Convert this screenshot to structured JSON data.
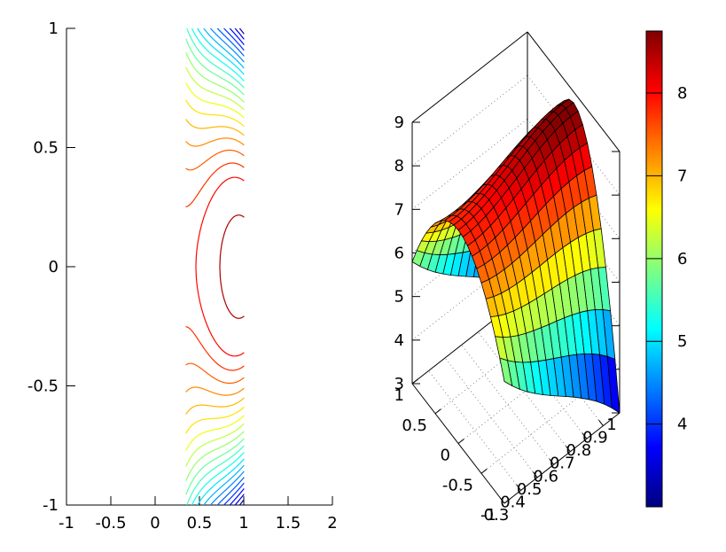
{
  "figure": {
    "background": "#ffffff",
    "text_color": "#000000"
  },
  "chart_data": [
    {
      "id": "contour-plot",
      "type": "contour",
      "title": "",
      "xlabel": "",
      "ylabel": "",
      "xlim": [
        -1,
        2
      ],
      "ylim": [
        -1,
        1
      ],
      "xticks": [
        "-1",
        "-0.5",
        "0",
        "0.5",
        "1",
        "1.5",
        "2"
      ],
      "xtick_values": [
        -1,
        -0.5,
        0,
        0.5,
        1,
        1.5,
        2
      ],
      "yticks": [
        "1",
        "0.5",
        "0",
        "-0.5",
        "-1"
      ],
      "ytick_values": [
        1,
        0.5,
        0,
        -0.5,
        -1
      ],
      "grid": false,
      "data_domain": {
        "x": [
          0.35,
          1.0
        ],
        "y": [
          -1,
          1
        ]
      },
      "levels": [
        3.25,
        3.5,
        3.75,
        4.0,
        4.25,
        4.5,
        4.75,
        5.0,
        5.25,
        5.5,
        5.75,
        6.0,
        6.25,
        6.5,
        6.75,
        7.0,
        7.25,
        7.5,
        7.75,
        8.0,
        8.5
      ],
      "colormap": "jet",
      "crange": [
        3.0,
        8.75
      ],
      "surface_model": {
        "formula": "z(x,y) = zmid(x) - A(x)*y^2",
        "zmid_poly": [
          8.74,
          -5.9566,
          12.4215,
          -6.4549
        ],
        "amp_base": 2.1,
        "amp_slope": 5.2143,
        "amp_x0": 0.3
      }
    },
    {
      "id": "surface-plot",
      "type": "surface-3d",
      "title": "",
      "xlim": [
        0.3,
        1.0
      ],
      "ylim": [
        -1,
        1
      ],
      "zlim": [
        3,
        9
      ],
      "xticks": [
        "0.3",
        "0.4",
        "0.5",
        "0.6",
        "0.7",
        "0.8",
        "0.9",
        "1"
      ],
      "xtick_values": [
        0.3,
        0.4,
        0.5,
        0.6,
        0.7,
        0.8,
        0.9,
        1.0
      ],
      "yticks": [
        "1",
        "0.5",
        "0",
        "-0.5",
        "-1"
      ],
      "ytick_values": [
        1,
        0.5,
        0,
        -0.5,
        -1
      ],
      "zticks": [
        "9",
        "8",
        "7",
        "6",
        "5",
        "4",
        "3"
      ],
      "ztick_values": [
        9,
        8,
        7,
        6,
        5,
        4,
        3
      ],
      "mesh": {
        "nx": 15,
        "ny": 20
      },
      "wall_grid_z": [
        4,
        5,
        6,
        7,
        8
      ],
      "floor_grid_x": [
        0.4,
        0.5,
        0.6,
        0.7,
        0.8,
        0.9
      ],
      "floor_grid_y": [
        -0.5,
        0,
        0.5
      ],
      "colormap": "jet",
      "crange": [
        3.0,
        8.75
      ],
      "surface_model": {
        "formula": "z(x,y) = zmid(x) - A(x)*y^2",
        "zmid_poly": [
          8.74,
          -5.9566,
          12.4215,
          -6.4549
        ],
        "amp_base": 2.1,
        "amp_slope": 5.2143,
        "amp_x0": 0.3
      },
      "colorbar": {
        "range": [
          3.0,
          8.75
        ],
        "ticks": [
          "8",
          "7",
          "6",
          "5",
          "4"
        ],
        "tick_values": [
          8,
          7,
          6,
          5,
          4
        ],
        "top_color": "#800000",
        "bottom_color": "#00008b"
      }
    }
  ]
}
